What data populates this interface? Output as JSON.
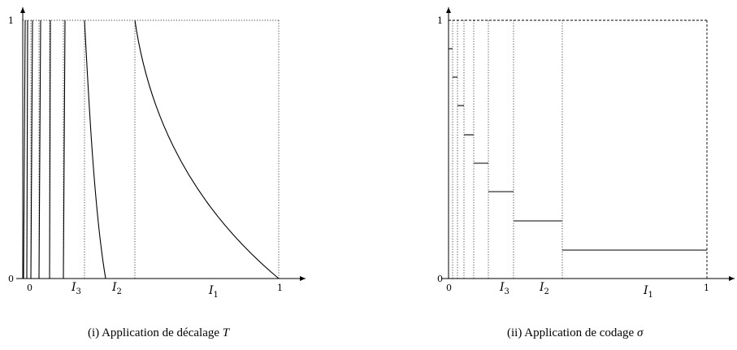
{
  "left_panel": {
    "y_ticks": [
      "0",
      "1"
    ],
    "x_ticks": [
      "0",
      "1"
    ],
    "interval_labels": [
      {
        "name": "I",
        "sub": "3"
      },
      {
        "name": "I",
        "sub": "2"
      },
      {
        "name": "I",
        "sub": "1"
      }
    ],
    "caption_prefix": "(i) Application de décalage ",
    "caption_symbol": "T"
  },
  "right_panel": {
    "y_ticks": [
      "0",
      "1"
    ],
    "x_ticks": [
      "0",
      "1"
    ],
    "interval_labels": [
      {
        "name": "I",
        "sub": "3"
      },
      {
        "name": "I",
        "sub": "2"
      },
      {
        "name": "I",
        "sub": "1"
      }
    ],
    "caption_prefix": "(ii) Application de codage ",
    "caption_symbol": "σ"
  }
}
